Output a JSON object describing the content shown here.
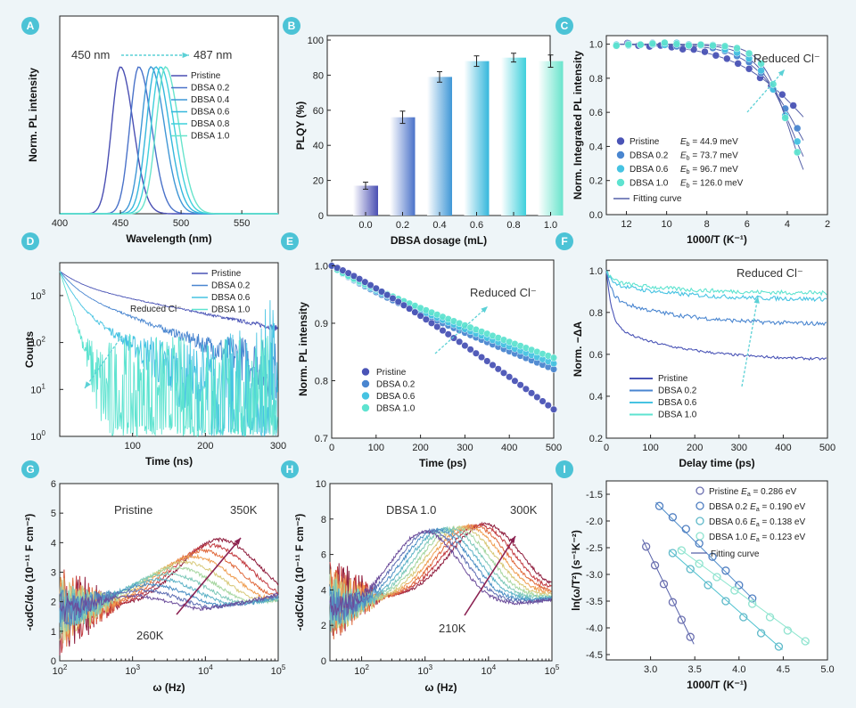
{
  "colors": {
    "background": "#eef5f8",
    "badge": "#4cc3d6",
    "series4": [
      "#4a54b6",
      "#4a86d0",
      "#46c3e2",
      "#5ee3d0"
    ],
    "series6": [
      "#4a4fb3",
      "#4a72c9",
      "#3f97d6",
      "#35b7dc",
      "#3fd0dc",
      "#68e4cc"
    ],
    "warm": [
      "#6b4c9a",
      "#5f6fb3",
      "#4c8fc4",
      "#5fb3c7",
      "#7cc8b8",
      "#a6d6a0",
      "#d7c878",
      "#ef9e52",
      "#e06a3d",
      "#c23a3f",
      "#8e1c3c"
    ],
    "arrow": "#8b2252",
    "teal_arrow": "#5bd1d6"
  },
  "chart_data": [
    {
      "panel": "A",
      "type": "line",
      "xlabel": "Wavelength (nm)",
      "ylabel": "Norm. PL intensity",
      "xlim": [
        400,
        580
      ],
      "xticks": [
        400,
        450,
        500,
        550
      ],
      "series": [
        {
          "name": "Pristine",
          "peak": 450,
          "fwhm": 20
        },
        {
          "name": "DBSA 0.2",
          "peak": 465,
          "fwhm": 20
        },
        {
          "name": "DBSA 0.4",
          "peak": 475,
          "fwhm": 21
        },
        {
          "name": "DBSA 0.6",
          "peak": 479,
          "fwhm": 21
        },
        {
          "name": "DBSA 0.8",
          "peak": 483,
          "fwhm": 21
        },
        {
          "name": "DBSA 1.0",
          "peak": 487,
          "fwhm": 21
        }
      ],
      "annotations": {
        "start": "450 nm",
        "end": "487 nm"
      }
    },
    {
      "panel": "B",
      "type": "bar",
      "xlabel": "DBSA dosage (mL)",
      "ylabel": "PLQY (%)",
      "categories": [
        "0.0",
        "0.2",
        "0.4",
        "0.6",
        "0.8",
        "1.0"
      ],
      "values": [
        17,
        56,
        79,
        88,
        90,
        88
      ],
      "errors": [
        2,
        3.5,
        3,
        3,
        2.5,
        3.5
      ],
      "ylim": [
        0,
        100
      ],
      "yticks": [
        0,
        20,
        40,
        60,
        80,
        100
      ]
    },
    {
      "panel": "C",
      "type": "scatter",
      "xlabel": "1000/T (K⁻¹)",
      "ylabel": "Norm. Integrated PL intensity",
      "xlim": [
        13,
        2
      ],
      "ylim": [
        0,
        1.05
      ],
      "xticks": [
        12,
        10,
        8,
        6,
        4,
        2
      ],
      "yticks": [
        0.0,
        0.2,
        0.4,
        0.6,
        0.8,
        1.0
      ],
      "series": [
        {
          "name": "Pristine",
          "eb": "44.9",
          "Eb_meV": 44.9,
          "A": 4
        },
        {
          "name": "DBSA 0.2",
          "eb": "73.7",
          "Eb_meV": 73.7,
          "A": 20
        },
        {
          "name": "DBSA 0.6",
          "eb": "96.7",
          "Eb_meV": 96.7,
          "A": 70
        },
        {
          "name": "DBSA 1.0",
          "eb": "126.0",
          "Eb_meV": 126.0,
          "A": 300
        }
      ],
      "eb_symbol": "E",
      "eb_sub": "b",
      "eb_unit": " meV",
      "eq": " = ",
      "fit_label": "Fitting curve",
      "annotation": "Reduced Cl⁻"
    },
    {
      "panel": "D",
      "type": "line",
      "xlabel": "Time (ns)",
      "ylabel": "Counts",
      "yscale": "log",
      "xlim": [
        0,
        300
      ],
      "xticks": [
        100,
        200,
        300
      ],
      "ylim_exp": [
        0,
        3.7
      ],
      "series": [
        {
          "name": "Pristine",
          "tau": 90
        },
        {
          "name": "DBSA 0.2",
          "tau": 60
        },
        {
          "name": "DBSA 0.6",
          "tau": 40
        },
        {
          "name": "DBSA 1.0",
          "tau": 14
        }
      ],
      "annotation": "Reduced Cl⁻"
    },
    {
      "panel": "E",
      "type": "scatter",
      "xlabel": "Time (ps)",
      "ylabel": "Norm. PL intensity",
      "xlim": [
        0,
        500
      ],
      "ylim": [
        0.7,
        1.01
      ],
      "xticks": [
        0,
        100,
        200,
        300,
        400,
        500
      ],
      "yticks": [
        0.7,
        0.8,
        0.9,
        1.0
      ],
      "series": [
        {
          "name": "Pristine",
          "end": 0.75
        },
        {
          "name": "DBSA 0.2",
          "end": 0.82
        },
        {
          "name": "DBSA 0.6",
          "end": 0.83
        },
        {
          "name": "DBSA 1.0",
          "end": 0.84
        }
      ],
      "annotation": "Reduced Cl⁻"
    },
    {
      "panel": "F",
      "type": "line",
      "xlabel": "Delay time (ps)",
      "ylabel": "Norm. −ΔA",
      "xlim": [
        0,
        500
      ],
      "ylim": [
        0.2,
        1.05
      ],
      "xticks": [
        0,
        100,
        200,
        300,
        400,
        500
      ],
      "yticks": [
        0.2,
        0.4,
        0.6,
        0.8,
        1.0
      ],
      "series": [
        {
          "name": "Pristine",
          "plateau": 0.57
        },
        {
          "name": "DBSA 0.2",
          "plateau": 0.74
        },
        {
          "name": "DBSA 0.6",
          "plateau": 0.86
        },
        {
          "name": "DBSA 1.0",
          "plateau": 0.89
        }
      ],
      "annotation": "Reduced Cl⁻"
    },
    {
      "panel": "G",
      "type": "line",
      "xlabel": "ω (Hz)",
      "ylabel": "-ωdC/dω (10⁻¹¹ F cm⁻²)",
      "xscale": "log",
      "xlim_exp": [
        2,
        5
      ],
      "ylim": [
        0,
        6
      ],
      "yticks": [
        0,
        1,
        2,
        3,
        4,
        5,
        6
      ],
      "title": "Pristine",
      "t_low": "260K",
      "t_high": "350K"
    },
    {
      "panel": "H",
      "type": "line",
      "xlabel": "ω (Hz)",
      "ylabel": "-ωdC/dω (10⁻¹¹ F cm⁻²)",
      "xscale": "log",
      "xlim_exp": [
        1.5,
        5
      ],
      "ylim": [
        0,
        10
      ],
      "yticks": [
        0,
        2,
        4,
        6,
        8,
        10
      ],
      "title": "DBSA 1.0",
      "t_low": "210K",
      "t_high": "300K"
    },
    {
      "panel": "I",
      "type": "scatter",
      "xlabel": "1000/T (K⁻¹)",
      "ylabel": "ln(ω/T²) (s⁻¹K⁻²)",
      "xlim": [
        2.5,
        5.0
      ],
      "ylim": [
        -4.6,
        -1.25
      ],
      "xticks": [
        3.0,
        3.5,
        4.0,
        4.5,
        5.0
      ],
      "yticks": [
        -1.5,
        -2.0,
        -2.5,
        -3.0,
        -3.5,
        -4.0,
        -4.5
      ],
      "series": [
        {
          "name": "Pristine",
          "ea": "0.286",
          "x": [
            2.95,
            3.05,
            3.15,
            3.25,
            3.35,
            3.45
          ],
          "y": [
            -2.48,
            -2.83,
            -3.18,
            -3.52,
            -3.85,
            -4.17
          ]
        },
        {
          "name": "DBSA 0.2",
          "ea": "0.190",
          "x": [
            3.1,
            3.25,
            3.4,
            3.55,
            3.7,
            3.85,
            4.0,
            4.15
          ],
          "y": [
            -1.72,
            -1.93,
            -2.15,
            -2.42,
            -2.67,
            -2.93,
            -3.2,
            -3.45
          ]
        },
        {
          "name": "DBSA 0.6",
          "ea": "0.138",
          "x": [
            3.25,
            3.45,
            3.65,
            3.85,
            4.05,
            4.25,
            4.45
          ],
          "y": [
            -2.6,
            -2.9,
            -3.2,
            -3.5,
            -3.8,
            -4.1,
            -4.35
          ]
        },
        {
          "name": "DBSA 1.0",
          "ea": "0.123",
          "x": [
            3.35,
            3.55,
            3.75,
            3.95,
            4.15,
            4.35,
            4.55,
            4.75
          ],
          "y": [
            -2.55,
            -2.8,
            -3.05,
            -3.3,
            -3.55,
            -3.8,
            -4.05,
            -4.25
          ]
        }
      ],
      "ea_symbol": "E",
      "ea_sub": "a",
      "ea_unit": " eV",
      "eq": " = ",
      "fit_label": "Fitting curve"
    }
  ],
  "badges": [
    "A",
    "B",
    "C",
    "D",
    "E",
    "F",
    "G",
    "H",
    "I"
  ]
}
